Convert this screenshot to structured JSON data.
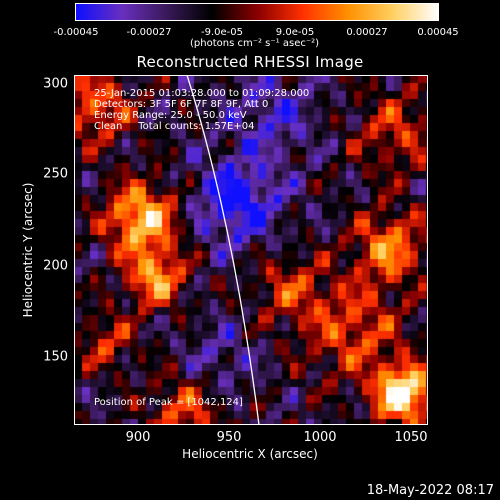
{
  "colorbar": {
    "ticks": [
      "-0.00045",
      "-0.00027",
      "-9.0e-05",
      "9.0e-05",
      "0.00027",
      "0.00045"
    ],
    "units": "(photons cm⁻² s⁻¹ asec⁻²)",
    "colors": [
      "#1010ff",
      "#6a30c0",
      "#3a1a5a",
      "#000000",
      "#8a0000",
      "#ff3000",
      "#ff9000",
      "#ffd060",
      "#ffffff"
    ]
  },
  "title": "Reconstructed RHESSI Image",
  "info": {
    "line1": "25-Jan-2015 01:03:28.000 to 01:09:28.000",
    "line2": "Detectors: 3F 5F 6F 7F 8F 9F, Att 0",
    "line3": "Energy Range: 25.0 - 50.0 keV",
    "line4": "Clean     Total counts: 1.57E+04",
    "peak": "Position of Peak = [1042,124]"
  },
  "axes": {
    "xlabel": "Heliocentric X (arcsec)",
    "ylabel": "Heliocentric Y (arcsec)",
    "xticks": [
      "900",
      "950",
      "1000",
      "1050"
    ],
    "yticks": [
      "300",
      "250",
      "200",
      "150"
    ]
  },
  "timestamp": "18-May-2022 08:17"
}
